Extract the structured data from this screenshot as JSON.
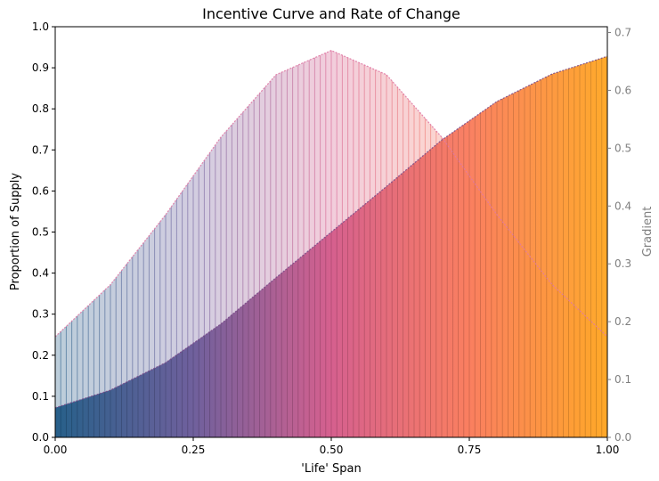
{
  "chart_data": {
    "type": "area",
    "title": "Incentive Curve and Rate of Change",
    "xlabel": "'Life' Span",
    "ylabel": "Proportion of Supply",
    "y2label": "Gradient",
    "xlim": [
      0,
      1
    ],
    "ylim": [
      0,
      1
    ],
    "y2lim": [
      0,
      0.71
    ],
    "xticks": [
      "0.00",
      "0.25",
      "0.50",
      "0.75",
      "1.00"
    ],
    "yticks": [
      "0.0",
      "0.1",
      "0.2",
      "0.3",
      "0.4",
      "0.5",
      "0.6",
      "0.7",
      "0.8",
      "0.9",
      "1.0"
    ],
    "y2ticks": [
      "0.0",
      "0.1",
      "0.2",
      "0.3",
      "0.4",
      "0.5",
      "0.6",
      "0.7"
    ],
    "grid": false,
    "color_gradient": [
      "#1f5a85",
      "#6a5a99",
      "#d45a8a",
      "#fa7a5a",
      "#ffa520"
    ],
    "series": [
      {
        "axis": "left",
        "x": [
          0,
          0.1,
          0.2,
          0.3,
          0.4,
          0.5,
          0.6,
          0.7,
          0.8,
          0.9,
          1.0
        ],
        "values": [
          0.072,
          0.115,
          0.182,
          0.276,
          0.389,
          0.5,
          0.611,
          0.724,
          0.818,
          0.885,
          0.928
        ]
      },
      {
        "axis": "right",
        "x": [
          0,
          0.1,
          0.2,
          0.3,
          0.4,
          0.5,
          0.6,
          0.7,
          0.8,
          0.9,
          1.0
        ],
        "values": [
          0.174,
          0.264,
          0.385,
          0.519,
          0.627,
          0.669,
          0.627,
          0.519,
          0.385,
          0.264,
          0.174
        ]
      }
    ]
  }
}
